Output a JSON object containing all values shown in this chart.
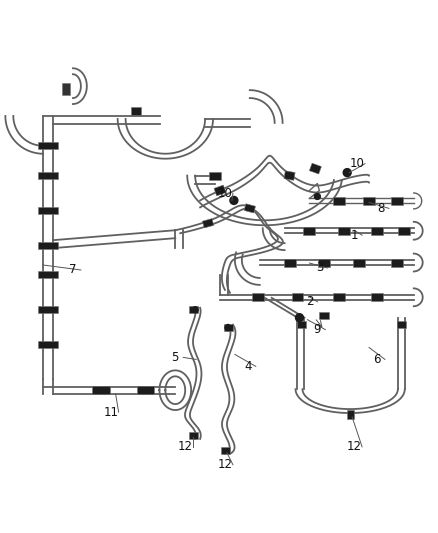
{
  "background_color": "#ffffff",
  "line_color": "#606060",
  "line_color2": "#888888",
  "connector_color": "#1a1a1a",
  "label_color": "#111111",
  "label_fontsize": 8.5,
  "leader_color": "#555555"
}
